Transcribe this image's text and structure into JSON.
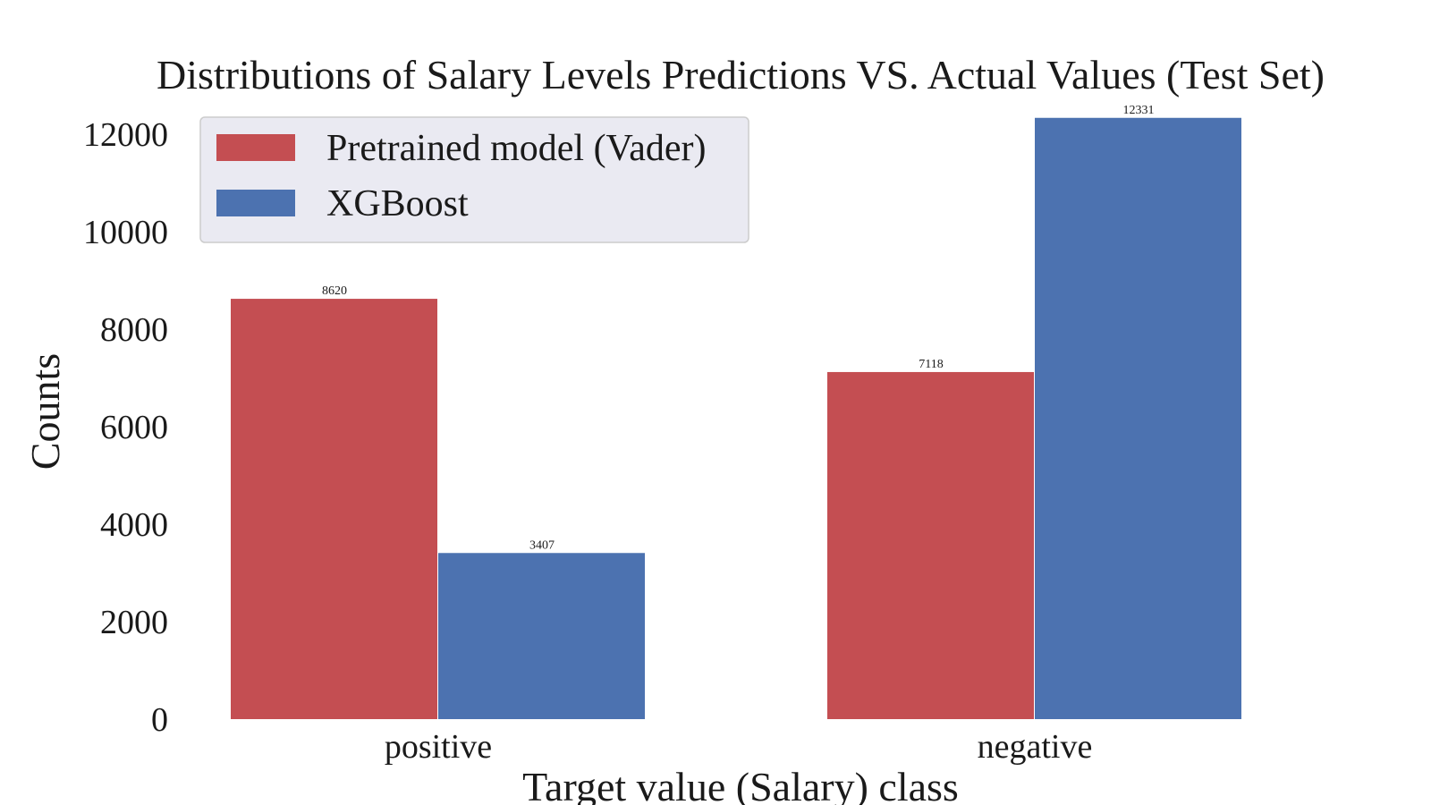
{
  "chart_data": {
    "type": "bar",
    "title": "Distributions of Salary Levels Predictions VS. Actual Values (Test Set)",
    "xlabel": "Target value (Salary) class",
    "ylabel": "Counts",
    "categories": [
      "positive",
      "negative"
    ],
    "series": [
      {
        "name": "Pretrained model (Vader)",
        "values": [
          8620,
          7118
        ],
        "color": "#c44e52"
      },
      {
        "name": "XGBoost",
        "values": [
          3407,
          12331
        ],
        "color": "#4c72b0"
      }
    ],
    "ylim": [
      0,
      12400
    ],
    "yticks": [
      0,
      2000,
      4000,
      6000,
      8000,
      10000,
      12000
    ],
    "grid": false,
    "legend_position": "top-left",
    "legend_background": "#eaeaf2",
    "data_labels": true
  }
}
